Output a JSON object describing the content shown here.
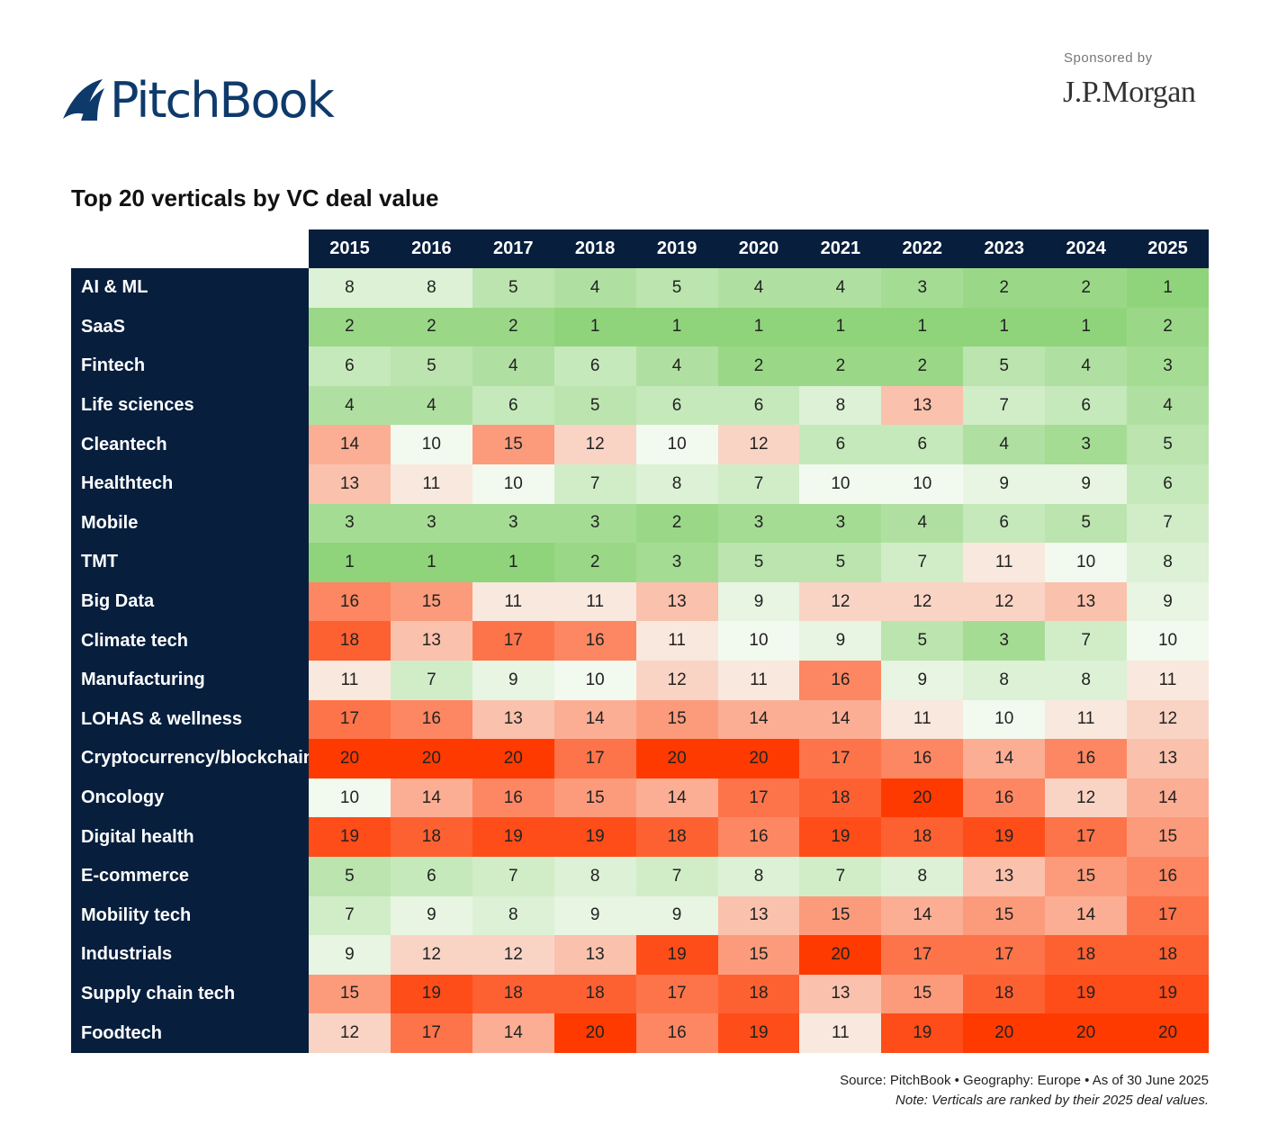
{
  "header": {
    "logo": "PitchBook",
    "sponsored_by": "Sponsored by",
    "sponsor": "J.P.Morgan"
  },
  "chart_data": {
    "type": "heatmap",
    "title": "Top 20 verticals by VC deal value",
    "columns": [
      "2015",
      "2016",
      "2017",
      "2018",
      "2019",
      "2020",
      "2021",
      "2022",
      "2023",
      "2024",
      "2025"
    ],
    "rows": [
      "AI & ML",
      "SaaS",
      "Fintech",
      "Life sciences",
      "Cleantech",
      "Healthtech",
      "Mobile",
      "TMT",
      "Big Data",
      "Climate tech",
      "Manufacturing",
      "LOHAS & wellness",
      "Cryptocurrency/blockchain",
      "Oncology",
      "Digital health",
      "E-commerce",
      "Mobility tech",
      "Industrials",
      "Supply chain tech",
      "Foodtech"
    ],
    "values": [
      [
        8,
        8,
        5,
        4,
        5,
        4,
        4,
        3,
        2,
        2,
        1
      ],
      [
        2,
        2,
        2,
        1,
        1,
        1,
        1,
        1,
        1,
        1,
        2
      ],
      [
        6,
        5,
        4,
        6,
        4,
        2,
        2,
        2,
        5,
        4,
        3
      ],
      [
        4,
        4,
        6,
        5,
        6,
        6,
        8,
        13,
        7,
        6,
        4
      ],
      [
        14,
        10,
        15,
        12,
        10,
        12,
        6,
        6,
        4,
        3,
        5
      ],
      [
        13,
        11,
        10,
        7,
        8,
        7,
        10,
        10,
        9,
        9,
        6
      ],
      [
        3,
        3,
        3,
        3,
        2,
        3,
        3,
        4,
        6,
        5,
        7
      ],
      [
        1,
        1,
        1,
        2,
        3,
        5,
        5,
        7,
        11,
        10,
        8
      ],
      [
        16,
        15,
        11,
        11,
        13,
        9,
        12,
        12,
        12,
        13,
        9
      ],
      [
        18,
        13,
        17,
        16,
        11,
        10,
        9,
        5,
        3,
        7,
        10
      ],
      [
        11,
        7,
        9,
        10,
        12,
        11,
        16,
        9,
        8,
        8,
        11
      ],
      [
        17,
        16,
        13,
        14,
        15,
        14,
        14,
        11,
        10,
        11,
        12
      ],
      [
        20,
        20,
        20,
        17,
        20,
        20,
        17,
        16,
        14,
        16,
        13
      ],
      [
        10,
        14,
        16,
        15,
        14,
        17,
        18,
        20,
        16,
        12,
        14
      ],
      [
        19,
        18,
        19,
        19,
        18,
        16,
        19,
        18,
        19,
        17,
        15
      ],
      [
        5,
        6,
        7,
        8,
        7,
        8,
        7,
        8,
        13,
        15,
        16
      ],
      [
        7,
        9,
        8,
        9,
        9,
        13,
        15,
        14,
        15,
        14,
        17
      ],
      [
        9,
        12,
        12,
        13,
        19,
        15,
        20,
        17,
        17,
        18,
        18
      ],
      [
        15,
        19,
        18,
        18,
        17,
        18,
        13,
        15,
        18,
        19,
        19
      ],
      [
        12,
        17,
        14,
        20,
        16,
        19,
        11,
        19,
        20,
        20,
        20
      ]
    ],
    "colors": {
      "best": "#8fd47a",
      "mid": "#f8fbf6",
      "worst": "#ff3a00"
    }
  },
  "footer": {
    "source": "Source: PitchBook  •  Geography: Europe  •  As of 30 June 2025",
    "note": "Note: Verticals are ranked by their 2025 deal values."
  }
}
